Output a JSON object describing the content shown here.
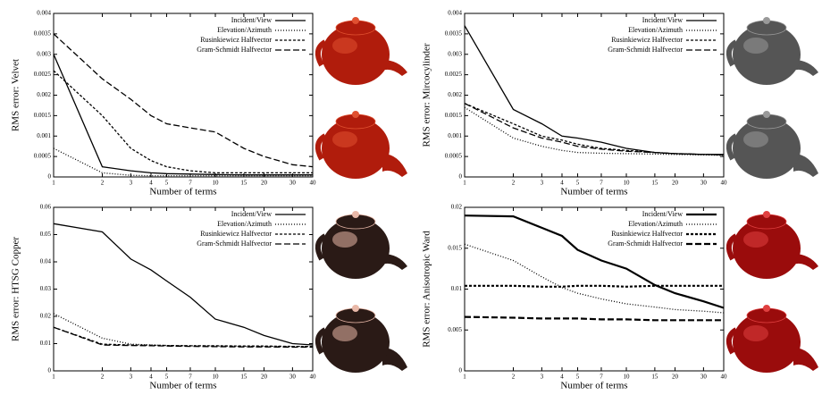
{
  "chart_data": [
    {
      "type": "line",
      "ylabel": "RMS error: Velvet",
      "xlabel": "Number of terms",
      "log_x": true,
      "legend": "upper right",
      "x": [
        1,
        2,
        3,
        4,
        5,
        7,
        10,
        15,
        20,
        30,
        40
      ],
      "xlim": [
        1,
        40
      ],
      "xticks": [
        1,
        2,
        3,
        4,
        5,
        7,
        10,
        15,
        20,
        30,
        40
      ],
      "ylim": [
        0,
        0.004
      ],
      "yticks": [
        0,
        0.0005,
        0.001,
        0.0015,
        0.002,
        0.0025,
        0.003,
        0.0035,
        0.004
      ],
      "series": [
        {
          "name": "Incident/View",
          "color": "#000000",
          "linestyle": "solid",
          "linewidth": 1.3,
          "values": [
            0.003,
            0.00025,
            0.00015,
            0.0001,
            8e-05,
            7e-05,
            6e-05,
            5e-05,
            5e-05,
            5e-05,
            5e-05
          ]
        },
        {
          "name": "Elevation/Azimuth",
          "color": "#000000",
          "linestyle": "dotted",
          "linewidth": 1.3,
          "values": [
            0.0007,
            0.0001,
            4e-05,
            3e-05,
            3e-05,
            3e-05,
            3e-05,
            3e-05,
            3e-05,
            3e-05,
            3e-05
          ]
        },
        {
          "name": "Rusinkiewicz Halfvector",
          "color": "#000000",
          "linestyle": "dashed",
          "linewidth": 1.3,
          "values": [
            0.0026,
            0.0015,
            0.0007,
            0.0004,
            0.00025,
            0.00015,
            0.0001,
            0.0001,
            0.0001,
            0.0001,
            0.0001
          ]
        },
        {
          "name": "Gram-Schmidt Halfvector",
          "color": "#000000",
          "linestyle": "longdash",
          "linewidth": 1.3,
          "values": [
            0.0035,
            0.0024,
            0.0019,
            0.0015,
            0.0013,
            0.0012,
            0.0011,
            0.0007,
            0.0005,
            0.0003,
            0.00025
          ]
        }
      ]
    },
    {
      "type": "line",
      "ylabel": "RMS error: Mircocylinder",
      "xlabel": "Number of terms",
      "log_x": true,
      "legend": "upper right",
      "x": [
        1,
        2,
        3,
        4,
        5,
        7,
        10,
        15,
        20,
        30,
        40
      ],
      "xlim": [
        1,
        40
      ],
      "xticks": [
        1,
        2,
        3,
        4,
        5,
        7,
        10,
        15,
        20,
        30,
        40
      ],
      "ylim": [
        0,
        0.004
      ],
      "yticks": [
        0,
        0.0005,
        0.001,
        0.0015,
        0.002,
        0.0025,
        0.003,
        0.0035,
        0.004
      ],
      "series": [
        {
          "name": "Incident/View",
          "color": "#000000",
          "linestyle": "solid",
          "linewidth": 1.3,
          "values": [
            0.0037,
            0.00165,
            0.0013,
            0.001,
            0.00095,
            0.00085,
            0.0007,
            0.0006,
            0.00057,
            0.00055,
            0.00055
          ]
        },
        {
          "name": "Elevation/Azimuth",
          "color": "#000000",
          "linestyle": "dotted",
          "linewidth": 1.3,
          "values": [
            0.0017,
            0.00095,
            0.00075,
            0.00065,
            0.0006,
            0.00058,
            0.00057,
            0.00056,
            0.00055,
            0.00054,
            0.00053
          ]
        },
        {
          "name": "Rusinkiewicz Halfvector",
          "color": "#000000",
          "linestyle": "dashed",
          "linewidth": 1.3,
          "values": [
            0.0018,
            0.0013,
            0.001,
            0.0009,
            0.0008,
            0.0007,
            0.00065,
            0.0006,
            0.00057,
            0.00055,
            0.00054
          ]
        },
        {
          "name": "Gram-Schmidt Halfvector",
          "color": "#000000",
          "linestyle": "longdash",
          "linewidth": 1.3,
          "values": [
            0.0018,
            0.0012,
            0.00095,
            0.00085,
            0.00075,
            0.00068,
            0.00063,
            0.0006,
            0.00057,
            0.00055,
            0.00054
          ]
        }
      ]
    },
    {
      "type": "line",
      "ylabel": "RMS error: HTSG Copper",
      "xlabel": "Number of terms",
      "log_x": true,
      "legend": "upper right",
      "x": [
        1,
        2,
        3,
        4,
        5,
        7,
        10,
        15,
        20,
        30,
        40
      ],
      "xlim": [
        1,
        40
      ],
      "xticks": [
        1,
        2,
        3,
        4,
        5,
        7,
        10,
        15,
        20,
        30,
        40
      ],
      "ylim": [
        0,
        0.06
      ],
      "yticks": [
        0,
        0.01,
        0.02,
        0.03,
        0.04,
        0.05,
        0.06
      ],
      "series": [
        {
          "name": "Incident/View",
          "color": "#000000",
          "linestyle": "solid",
          "linewidth": 1.3,
          "values": [
            0.054,
            0.051,
            0.041,
            0.037,
            0.033,
            0.027,
            0.019,
            0.016,
            0.013,
            0.01,
            0.0095
          ]
        },
        {
          "name": "Elevation/Azimuth",
          "color": "#000000",
          "linestyle": "dotted",
          "linewidth": 1.3,
          "values": [
            0.021,
            0.012,
            0.0098,
            0.0095,
            0.0093,
            0.0092,
            0.0091,
            0.009,
            0.009,
            0.009,
            0.009
          ]
        },
        {
          "name": "Rusinkiewicz Halfvector",
          "color": "#000000",
          "linestyle": "dashed",
          "linewidth": 1.3,
          "values": [
            0.016,
            0.0098,
            0.0095,
            0.0094,
            0.0093,
            0.0092,
            0.0092,
            0.0091,
            0.0091,
            0.009,
            0.009
          ]
        },
        {
          "name": "Gram-Schmidt Halfvector",
          "color": "#000000",
          "linestyle": "longdash",
          "linewidth": 1.3,
          "values": [
            0.016,
            0.0095,
            0.0093,
            0.0092,
            0.0091,
            0.009,
            0.0089,
            0.0088,
            0.0088,
            0.0087,
            0.0087
          ]
        }
      ]
    },
    {
      "type": "line",
      "ylabel": "RMS error: Anisotropic Ward",
      "xlabel": "Number of terms",
      "log_x": true,
      "legend": "upper right",
      "x": [
        1,
        2,
        3,
        4,
        5,
        7,
        10,
        15,
        20,
        30,
        40
      ],
      "xlim": [
        1,
        40
      ],
      "xticks": [
        1,
        2,
        3,
        4,
        5,
        7,
        10,
        15,
        20,
        30,
        40
      ],
      "ylim": [
        0,
        0.02
      ],
      "yticks": [
        0,
        0.005,
        0.01,
        0.015,
        0.02
      ],
      "series": [
        {
          "name": "Incident/View",
          "color": "#000000",
          "linestyle": "solid",
          "linewidth": 2.2,
          "values": [
            0.019,
            0.0189,
            0.0175,
            0.0165,
            0.0148,
            0.0135,
            0.0125,
            0.0105,
            0.0095,
            0.0085,
            0.0077
          ]
        },
        {
          "name": "Elevation/Azimuth",
          "color": "#000000",
          "linestyle": "dotted",
          "linewidth": 1.3,
          "values": [
            0.0155,
            0.0135,
            0.0115,
            0.0102,
            0.0095,
            0.0088,
            0.0082,
            0.0078,
            0.0075,
            0.0073,
            0.0071
          ]
        },
        {
          "name": "Rusinkiewicz Halfvector",
          "color": "#000000",
          "linestyle": "dashed",
          "linewidth": 2.2,
          "values": [
            0.0104,
            0.0104,
            0.0103,
            0.0103,
            0.0104,
            0.0104,
            0.0103,
            0.0104,
            0.0104,
            0.0104,
            0.0104
          ]
        },
        {
          "name": "Gram-Schmidt Halfvector",
          "color": "#000000",
          "linestyle": "longdash",
          "linewidth": 2.2,
          "values": [
            0.0066,
            0.0065,
            0.0064,
            0.0064,
            0.0064,
            0.0063,
            0.0063,
            0.0062,
            0.0062,
            0.0062,
            0.0062
          ]
        }
      ]
    }
  ]
}
